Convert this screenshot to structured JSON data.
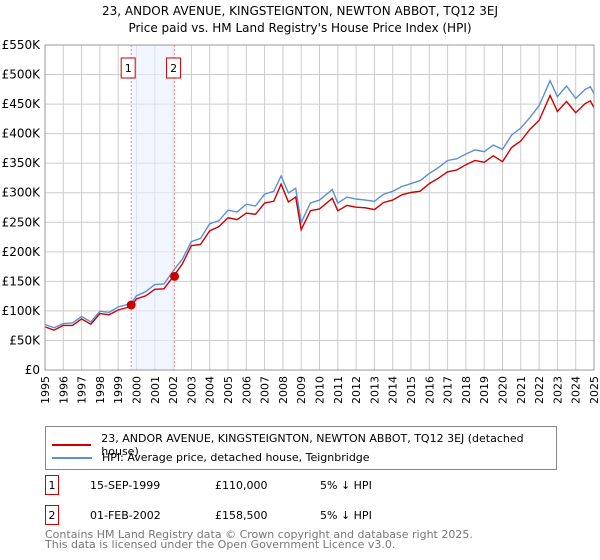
{
  "chart_data": {
    "type": "line",
    "title": "23, ANDOR AVENUE, KINGSTEIGNTON, NEWTON ABBOT, TQ12 3EJ",
    "subtitle": "Price paid vs. HM Land Registry's House Price Index (HPI)",
    "xlim": [
      1995,
      2025
    ],
    "ylim": [
      0,
      550000
    ],
    "xticks": [
      "1995",
      "1996",
      "1997",
      "1998",
      "1999",
      "2000",
      "2001",
      "2002",
      "2003",
      "2004",
      "2005",
      "2006",
      "2007",
      "2008",
      "2009",
      "2010",
      "2011",
      "2012",
      "2013",
      "2014",
      "2015",
      "2016",
      "2017",
      "2018",
      "2019",
      "2020",
      "2021",
      "2022",
      "2023",
      "2024",
      "2025"
    ],
    "yticks": [
      "£0",
      "£50K",
      "£100K",
      "£150K",
      "£200K",
      "£250K",
      "£300K",
      "£350K",
      "£400K",
      "£450K",
      "£500K",
      "£550K"
    ],
    "grid": true,
    "series": [
      {
        "name": "HPI: Average price, detached house, Teignbridge",
        "color": "#5b8fd6",
        "x": [
          1995,
          1995.5,
          1996,
          1996.5,
          1997,
          1997.5,
          1998,
          1998.5,
          1999,
          1999.7,
          2000,
          2000.5,
          2001,
          2001.5,
          2002,
          2002.5,
          2003,
          2003.5,
          2004,
          2004.5,
          2005,
          2005.5,
          2006,
          2006.5,
          2007,
          2007.5,
          2007.9,
          2008.3,
          2008.7,
          2009,
          2009.5,
          2010,
          2010.7,
          2011,
          2011.5,
          2012,
          2012.5,
          2013,
          2013.5,
          2014,
          2014.5,
          2015,
          2015.5,
          2016,
          2016.5,
          2017,
          2017.5,
          2018,
          2018.5,
          2019,
          2019.5,
          2020,
          2020.5,
          2021,
          2021.5,
          2022,
          2022.6,
          2023,
          2023.5,
          2024,
          2024.5,
          2024.8,
          2025
        ],
        "y": [
          77000,
          74000,
          76000,
          82000,
          88000,
          84000,
          97000,
          100000,
          104000,
          115000,
          123000,
          135000,
          142000,
          148000,
          165000,
          190000,
          215000,
          225000,
          245000,
          255000,
          268000,
          270000,
          278000,
          280000,
          295000,
          305000,
          326000,
          302000,
          305000,
          252000,
          280000,
          290000,
          303000,
          285000,
          290000,
          292000,
          285000,
          288000,
          295000,
          305000,
          308000,
          318000,
          318000,
          335000,
          340000,
          357000,
          355000,
          368000,
          370000,
          372000,
          378000,
          376000,
          395000,
          412000,
          425000,
          450000,
          487000,
          465000,
          478000,
          462000,
          472000,
          482000,
          468000
        ]
      },
      {
        "name": "23, ANDOR AVENUE, KINGSTEIGNTON, NEWTON ABBOT, TQ12 3EJ (detached house)",
        "color": "#cc0000",
        "x": [
          1995,
          1995.5,
          1996,
          1996.5,
          1997,
          1997.5,
          1998,
          1998.5,
          1999,
          1999.7,
          2000,
          2000.5,
          2001,
          2001.5,
          2002.08,
          2002.5,
          2003,
          2003.5,
          2004,
          2004.5,
          2005,
          2005.5,
          2006,
          2006.5,
          2007,
          2007.5,
          2007.9,
          2008.3,
          2008.7,
          2009,
          2009.5,
          2010,
          2010.7,
          2011,
          2011.5,
          2012,
          2012.5,
          2013,
          2013.5,
          2014,
          2014.5,
          2015,
          2015.5,
          2016,
          2016.5,
          2017,
          2017.5,
          2018,
          2018.5,
          2019,
          2019.5,
          2020,
          2020.5,
          2021,
          2021.5,
          2022,
          2022.6,
          2023,
          2023.5,
          2024,
          2024.5,
          2024.8,
          2025
        ],
        "y": [
          73000,
          70000,
          73000,
          78000,
          84000,
          80000,
          93000,
          96000,
          99000,
          110000,
          118000,
          128000,
          134000,
          140000,
          158500,
          182000,
          208000,
          215000,
          233000,
          245000,
          255000,
          257000,
          263000,
          266000,
          280000,
          288000,
          312000,
          287000,
          290000,
          240000,
          267000,
          275000,
          288000,
          272000,
          276000,
          278000,
          272000,
          274000,
          281000,
          290000,
          294000,
          303000,
          300000,
          318000,
          322000,
          338000,
          336000,
          350000,
          352000,
          354000,
          360000,
          355000,
          374000,
          390000,
          405000,
          425000,
          462000,
          440000,
          452000,
          438000,
          448000,
          458000,
          444000
        ]
      }
    ],
    "sales": [
      {
        "label": "1",
        "x": 1999.71,
        "y": 110000,
        "date": "15-SEP-1999",
        "price": "£110,000",
        "hpi": "5% ↓ HPI"
      },
      {
        "label": "2",
        "x": 2002.08,
        "y": 158500,
        "date": "01-FEB-2002",
        "price": "£158,500",
        "hpi": "5% ↓ HPI"
      }
    ],
    "legend_position": "below"
  },
  "footer": {
    "line1": "Contains HM Land Registry data © Crown copyright and database right 2025.",
    "line2": "This data is licensed under the Open Government Licence v3.0."
  }
}
